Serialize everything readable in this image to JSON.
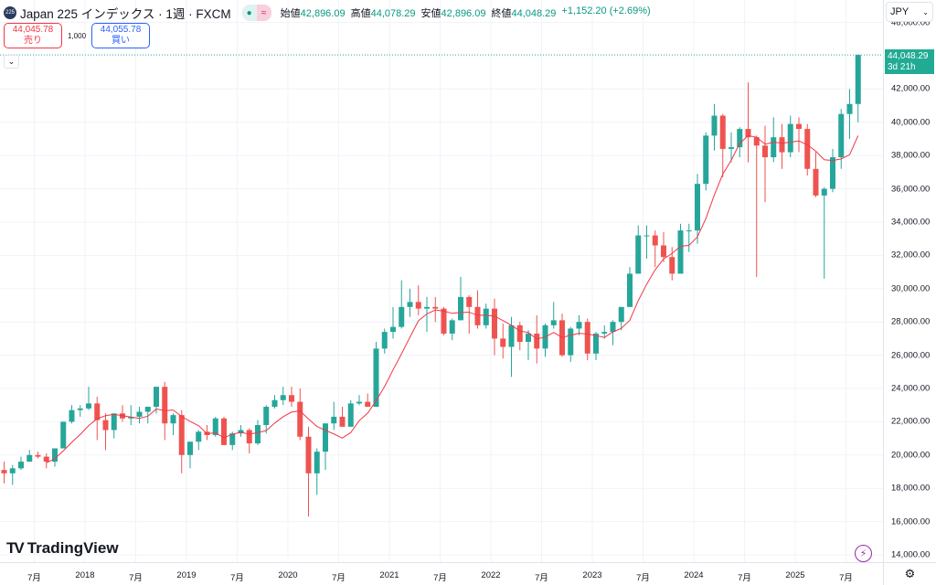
{
  "header": {
    "symbol_badge": "225",
    "title": "Japan 225 インデックス · 1週 · FXCM",
    "ohlc": [
      {
        "label": "始値",
        "value": "42,896.09"
      },
      {
        "label": "高値",
        "value": "44,078.29"
      },
      {
        "label": "安値",
        "value": "42,896.09"
      },
      {
        "label": "終値",
        "value": "44,048.29"
      }
    ],
    "change": "+1,152.20 (+2.69%)"
  },
  "trade": {
    "sell_price": "44,045.78",
    "sell_label": "売り",
    "quantity": "1,000",
    "buy_price": "44,055.78",
    "buy_label": "買い"
  },
  "currency": "JPY",
  "current_price": {
    "value": "44,048.29",
    "countdown": "3d 21h"
  },
  "branding": "TradingView",
  "colors": {
    "up": "#26a69a",
    "down": "#ef5350",
    "ma": "#f23645",
    "grid": "#f0f3fa"
  },
  "chart_data": {
    "type": "candlestick",
    "interval_note": "approximated monthly from weekly chart",
    "start": "2017-03",
    "ylim": [
      14000,
      47000
    ],
    "y_ticks": [
      "14,000.00",
      "16,000.00",
      "18,000.00",
      "20,000.00",
      "22,000.00",
      "24,000.00",
      "26,000.00",
      "28,000.00",
      "30,000.00",
      "32,000.00",
      "34,000.00",
      "36,000.00",
      "38,000.00",
      "40,000.00",
      "42,000.00",
      "46,000.00"
    ],
    "x_ticks": [
      {
        "label": "7月",
        "t": 2017.5
      },
      {
        "label": "2018",
        "t": 2018
      },
      {
        "label": "7月",
        "t": 2018.5
      },
      {
        "label": "2019",
        "t": 2019
      },
      {
        "label": "7月",
        "t": 2019.5
      },
      {
        "label": "2020",
        "t": 2020
      },
      {
        "label": "7月",
        "t": 2020.5
      },
      {
        "label": "2021",
        "t": 2021
      },
      {
        "label": "7月",
        "t": 2021.5
      },
      {
        "label": "2022",
        "t": 2022
      },
      {
        "label": "7月",
        "t": 2022.5
      },
      {
        "label": "2023",
        "t": 2023
      },
      {
        "label": "7月",
        "t": 2023.5
      },
      {
        "label": "2024",
        "t": 2024
      },
      {
        "label": "7月",
        "t": 2024.5
      },
      {
        "label": "2025",
        "t": 2025
      },
      {
        "label": "7月",
        "t": 2025.5
      }
    ],
    "ma_period": 6,
    "ohlc": [
      [
        19.1,
        19.6,
        18.3,
        18.9
      ],
      [
        18.9,
        19.4,
        18.2,
        19.2
      ],
      [
        19.2,
        19.9,
        19.1,
        19.6
      ],
      [
        19.6,
        20.3,
        19.6,
        20.0
      ],
      [
        20.0,
        20.2,
        19.8,
        19.9
      ],
      [
        19.9,
        20.1,
        19.2,
        19.6
      ],
      [
        19.6,
        20.4,
        19.3,
        20.4
      ],
      [
        20.4,
        22.0,
        20.4,
        22.0
      ],
      [
        22.0,
        23.0,
        21.9,
        22.7
      ],
      [
        22.7,
        23.0,
        22.3,
        22.8
      ],
      [
        22.8,
        24.1,
        22.7,
        23.1
      ],
      [
        23.1,
        23.5,
        20.9,
        22.1
      ],
      [
        22.1,
        22.5,
        20.3,
        21.5
      ],
      [
        21.5,
        22.5,
        21.0,
        22.5
      ],
      [
        22.5,
        23.0,
        22.0,
        22.2
      ],
      [
        22.2,
        23.0,
        21.8,
        22.3
      ],
      [
        22.3,
        22.9,
        21.9,
        22.6
      ],
      [
        22.6,
        22.9,
        21.9,
        22.9
      ],
      [
        22.9,
        24.1,
        22.5,
        24.1
      ],
      [
        24.1,
        24.4,
        20.9,
        21.9
      ],
      [
        21.9,
        22.5,
        21.2,
        22.4
      ],
      [
        22.4,
        22.7,
        18.9,
        20.0
      ],
      [
        20.0,
        20.8,
        19.2,
        20.8
      ],
      [
        20.8,
        21.5,
        20.3,
        21.4
      ],
      [
        21.4,
        21.8,
        20.9,
        21.2
      ],
      [
        21.2,
        22.3,
        21.1,
        22.2
      ],
      [
        22.2,
        22.3,
        20.6,
        20.6
      ],
      [
        20.6,
        21.4,
        20.3,
        21.3
      ],
      [
        21.3,
        21.8,
        21.1,
        21.5
      ],
      [
        21.5,
        21.6,
        20.1,
        20.7
      ],
      [
        20.7,
        22.1,
        20.6,
        21.8
      ],
      [
        21.8,
        23.0,
        21.3,
        22.9
      ],
      [
        22.9,
        23.6,
        22.8,
        23.3
      ],
      [
        23.3,
        24.1,
        23.0,
        23.6
      ],
      [
        23.6,
        24.1,
        22.9,
        23.2
      ],
      [
        23.2,
        24.0,
        20.9,
        21.1
      ],
      [
        21.1,
        21.7,
        16.3,
        18.9
      ],
      [
        18.9,
        20.4,
        17.6,
        20.2
      ],
      [
        20.2,
        21.9,
        19.1,
        21.9
      ],
      [
        21.9,
        23.2,
        21.5,
        22.3
      ],
      [
        22.3,
        22.9,
        21.7,
        21.7
      ],
      [
        21.7,
        23.3,
        21.7,
        23.1
      ],
      [
        23.1,
        23.6,
        23.0,
        23.2
      ],
      [
        23.2,
        23.7,
        22.9,
        22.9
      ],
      [
        22.9,
        26.8,
        22.9,
        26.4
      ],
      [
        26.4,
        27.6,
        26.1,
        27.4
      ],
      [
        27.4,
        28.9,
        27.0,
        27.7
      ],
      [
        27.7,
        30.5,
        27.6,
        28.9
      ],
      [
        28.9,
        30.0,
        28.3,
        29.2
      ],
      [
        29.2,
        30.2,
        28.4,
        28.8
      ],
      [
        28.8,
        29.5,
        27.4,
        28.9
      ],
      [
        28.9,
        29.5,
        28.0,
        28.8
      ],
      [
        28.8,
        28.9,
        27.2,
        27.3
      ],
      [
        27.3,
        28.2,
        26.9,
        28.1
      ],
      [
        28.1,
        30.7,
        28.1,
        29.5
      ],
      [
        29.5,
        29.6,
        27.3,
        28.9
      ],
      [
        28.9,
        29.9,
        27.6,
        27.8
      ],
      [
        27.8,
        29.1,
        27.6,
        28.8
      ],
      [
        28.8,
        29.4,
        26.0,
        27.0
      ],
      [
        27.0,
        27.9,
        25.8,
        26.5
      ],
      [
        26.5,
        28.3,
        24.7,
        27.8
      ],
      [
        27.8,
        28.0,
        26.3,
        26.8
      ],
      [
        26.8,
        27.5,
        25.7,
        27.3
      ],
      [
        27.3,
        28.4,
        25.5,
        26.4
      ],
      [
        26.4,
        27.9,
        25.9,
        27.8
      ],
      [
        27.8,
        29.2,
        27.6,
        28.1
      ],
      [
        28.1,
        28.5,
        25.9,
        26.0
      ],
      [
        26.0,
        27.7,
        25.6,
        27.6
      ],
      [
        27.6,
        28.4,
        27.2,
        28.0
      ],
      [
        28.0,
        28.2,
        25.7,
        26.1
      ],
      [
        26.1,
        27.4,
        25.7,
        27.3
      ],
      [
        27.3,
        27.8,
        27.0,
        27.4
      ],
      [
        27.4,
        28.1,
        26.6,
        28.0
      ],
      [
        28.0,
        28.9,
        27.5,
        28.9
      ],
      [
        28.9,
        31.3,
        28.9,
        30.9
      ],
      [
        30.9,
        33.8,
        30.9,
        33.2
      ],
      [
        33.2,
        33.8,
        31.8,
        33.2
      ],
      [
        33.2,
        33.5,
        31.3,
        32.6
      ],
      [
        32.6,
        33.4,
        31.6,
        31.9
      ],
      [
        31.9,
        32.5,
        30.5,
        30.9
      ],
      [
        30.9,
        33.9,
        30.9,
        33.5
      ],
      [
        33.5,
        33.9,
        32.2,
        33.5
      ],
      [
        33.5,
        36.9,
        32.7,
        36.3
      ],
      [
        36.3,
        39.4,
        35.9,
        39.2
      ],
      [
        39.2,
        41.1,
        38.3,
        40.4
      ],
      [
        40.4,
        40.5,
        36.7,
        38.4
      ],
      [
        38.4,
        39.4,
        37.6,
        38.5
      ],
      [
        38.5,
        39.7,
        37.9,
        39.6
      ],
      [
        39.6,
        42.4,
        37.6,
        39.1
      ],
      [
        39.1,
        39.2,
        30.7,
        38.6
      ],
      [
        38.6,
        39.8,
        35.2,
        37.9
      ],
      [
        37.9,
        40.3,
        37.6,
        39.1
      ],
      [
        39.1,
        39.9,
        37.2,
        38.2
      ],
      [
        38.2,
        40.4,
        37.9,
        39.9
      ],
      [
        39.9,
        40.3,
        38.2,
        39.6
      ],
      [
        39.6,
        39.9,
        36.8,
        37.2
      ],
      [
        37.2,
        38.2,
        35.5,
        35.6
      ],
      [
        35.6,
        36.1,
        30.6,
        36.0
      ],
      [
        36.0,
        38.4,
        35.8,
        37.9
      ],
      [
        37.9,
        40.8,
        37.2,
        40.5
      ],
      [
        40.5,
        42.0,
        39.0,
        41.1
      ],
      [
        41.1,
        44.08,
        40.0,
        44.05
      ]
    ],
    "last_close": 44048.29
  }
}
